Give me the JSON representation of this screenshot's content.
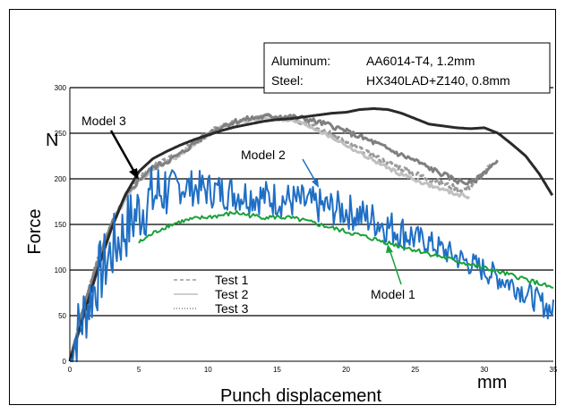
{
  "chart_data": {
    "type": "line",
    "title": "",
    "xlabel": "Punch displacement",
    "ylabel": "Force",
    "x_unit": "mm",
    "y_unit": "N",
    "xlim": [
      0,
      35
    ],
    "ylim": [
      0,
      300
    ],
    "xticks": [
      0,
      5,
      10,
      15,
      20,
      25,
      30,
      35
    ],
    "yticks": [
      0,
      50,
      100,
      150,
      200,
      250,
      300
    ],
    "grid": "horizontal",
    "info_box": [
      {
        "label": "Aluminum:",
        "value": "AA6014-T4, 1.2mm"
      },
      {
        "label": "Steel:",
        "value": "HX340LAD+Z140, 0.8mm"
      }
    ],
    "legend": {
      "placement": "lower-left",
      "entries": [
        {
          "label": "Test 1",
          "style": "dashed"
        },
        {
          "label": "Test 2",
          "style": "solid"
        },
        {
          "label": "Test 3",
          "style": "dotted"
        }
      ]
    },
    "annotations": [
      {
        "text": "Model 3",
        "series": "model3"
      },
      {
        "text": "Model 2",
        "series": "model2"
      },
      {
        "text": "Model 1",
        "series": "model1"
      }
    ],
    "series": [
      {
        "id": "test1",
        "name": "Test 1",
        "color": "#9a9a9a",
        "style": "dashed",
        "width": 3,
        "noise": 3,
        "x": [
          0,
          0.5,
          1,
          2,
          3,
          4,
          5,
          6,
          7,
          8,
          9,
          10,
          11,
          12,
          13,
          14,
          15,
          16,
          17,
          18,
          19,
          20,
          21,
          22,
          23,
          24,
          25,
          26,
          27,
          28,
          28.5,
          29,
          29.5,
          30,
          30.5
        ],
        "y": [
          0,
          30,
          60,
          110,
          150,
          180,
          200,
          213,
          220,
          228,
          240,
          250,
          258,
          262,
          265,
          268,
          268,
          266,
          262,
          255,
          248,
          240,
          232,
          225,
          218,
          212,
          206,
          200,
          195,
          190,
          188,
          192,
          200,
          208,
          215
        ]
      },
      {
        "id": "test2",
        "name": "Test 2",
        "color": "#c0c0c0",
        "style": "solid",
        "width": 3,
        "noise": 2,
        "x": [
          0,
          0.5,
          1,
          2,
          3,
          4,
          5,
          6,
          7,
          8,
          9,
          10,
          11,
          12,
          13,
          14,
          15,
          16,
          17,
          18,
          19,
          20,
          21,
          22,
          23,
          24,
          25,
          26,
          27,
          28,
          29
        ],
        "y": [
          0,
          28,
          58,
          108,
          148,
          178,
          198,
          210,
          218,
          226,
          238,
          248,
          257,
          261,
          264,
          266,
          266,
          264,
          260,
          253,
          245,
          237,
          228,
          220,
          212,
          205,
          199,
          193,
          188,
          183,
          180
        ]
      },
      {
        "id": "test3",
        "name": "Test 3",
        "color": "#808080",
        "style": "dotted",
        "width": 3,
        "noise": 3,
        "x": [
          0,
          0.5,
          1,
          2,
          3,
          4,
          5,
          6,
          7,
          8,
          9,
          10,
          11,
          12,
          13,
          14,
          15,
          16,
          17,
          18,
          19,
          20,
          21,
          22,
          23,
          24,
          25,
          26,
          27,
          28,
          29,
          29.5,
          30,
          30.5,
          31
        ],
        "y": [
          0,
          29,
          59,
          109,
          149,
          179,
          199,
          212,
          219,
          227,
          239,
          249,
          258,
          263,
          266,
          268,
          269,
          268,
          266,
          262,
          258,
          252,
          246,
          240,
          233,
          226,
          220,
          212,
          205,
          198,
          195,
          200,
          207,
          214,
          218
        ]
      },
      {
        "id": "model3",
        "name": "Model 3",
        "color": "#2a2a2a",
        "style": "solid",
        "width": 3,
        "noise": 0,
        "x": [
          0,
          0.5,
          1,
          2,
          3,
          4,
          5,
          6,
          7,
          8,
          9,
          10,
          11,
          12,
          13,
          14,
          15,
          16,
          17,
          18,
          19,
          20,
          21,
          22,
          23,
          24,
          25,
          26,
          27,
          28,
          29,
          30,
          31,
          32,
          33,
          34,
          35
        ],
        "y": [
          0,
          25,
          50,
          100,
          145,
          182,
          208,
          222,
          230,
          237,
          243,
          248,
          253,
          257,
          260,
          263,
          265,
          266,
          268,
          270,
          272,
          273,
          276,
          277,
          276,
          272,
          266,
          260,
          258,
          256,
          255,
          256,
          250,
          238,
          225,
          205,
          180
        ]
      },
      {
        "id": "model2",
        "name": "Model 2",
        "color": "#1f6fc4",
        "style": "solid",
        "width": 2,
        "noise": 22,
        "x": [
          0,
          0.5,
          1,
          1.5,
          2,
          3,
          4,
          5,
          6,
          7,
          8,
          9,
          10,
          11,
          12,
          13,
          14,
          15,
          16,
          17,
          18,
          19,
          20,
          21,
          22,
          23,
          24,
          25,
          26,
          27,
          28,
          29,
          30,
          31,
          32,
          33,
          34,
          35
        ],
        "y": [
          0,
          30,
          50,
          70,
          90,
          120,
          145,
          165,
          180,
          190,
          192,
          190,
          188,
          186,
          184,
          182,
          180,
          178,
          176,
          174,
          170,
          168,
          165,
          160,
          155,
          148,
          142,
          136,
          130,
          122,
          114,
          107,
          100,
          92,
          85,
          75,
          65,
          55
        ]
      },
      {
        "id": "model1",
        "name": "Model 1",
        "color": "#1aa13a",
        "style": "solid",
        "width": 2,
        "noise": 2.5,
        "x": [
          5,
          6,
          7,
          8,
          9,
          10,
          11,
          12,
          13,
          14,
          15,
          16,
          17,
          18,
          19,
          20,
          21,
          22,
          23,
          24,
          25,
          26,
          27,
          28,
          29,
          30,
          31,
          32,
          33,
          34,
          35
        ],
        "y": [
          130,
          140,
          148,
          153,
          156,
          158,
          160,
          163,
          160,
          158,
          158,
          157,
          154,
          150,
          146,
          142,
          138,
          134,
          130,
          126,
          122,
          118,
          114,
          110,
          106,
          102,
          98,
          94,
          90,
          85,
          80
        ]
      }
    ]
  }
}
